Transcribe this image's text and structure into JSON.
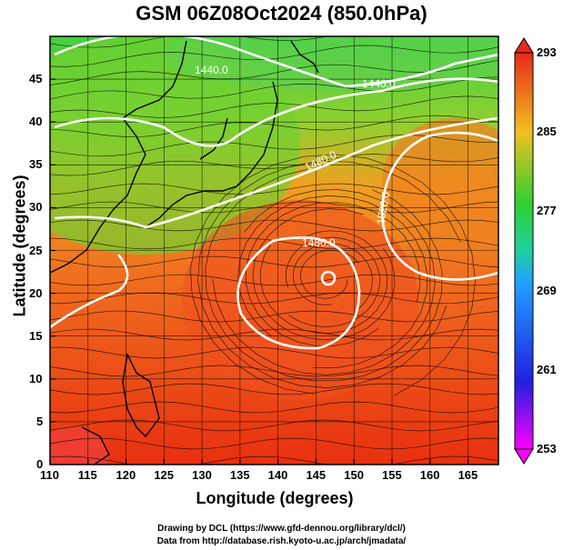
{
  "title": "GSM 06Z08Oct2024 (850.0hPa)",
  "xlabel": "Longitude (degrees)",
  "ylabel": "Latitude  (degrees)",
  "credit1": "Drawing by DCL (https://www.gfd-dennou.org/library/dcl/)",
  "credit2": "Data from http://database.rish.kyoto-u.ac.jp/arch/jmadata/",
  "map": {
    "lon_ticks": [
      "110",
      "115",
      "120",
      "125",
      "130",
      "135",
      "140",
      "145",
      "150",
      "155",
      "160",
      "165"
    ],
    "lat_ticks": [
      "0",
      "5",
      "10",
      "15",
      "20",
      "25",
      "30",
      "35",
      "40",
      "45"
    ],
    "lon_range": [
      110,
      169
    ],
    "lat_range": [
      0,
      50
    ],
    "contour_labels": [
      "1440.0",
      "1440.0",
      "1480.0",
      "1480.0",
      "1520.0"
    ],
    "colorbar_ticks": [
      "293",
      "285",
      "277",
      "269",
      "261",
      "253"
    ],
    "colorbar_range": [
      253,
      293
    ],
    "colors": {
      "warm": "#e83010",
      "mid": "#f0a020",
      "cool": "#30c030"
    }
  }
}
